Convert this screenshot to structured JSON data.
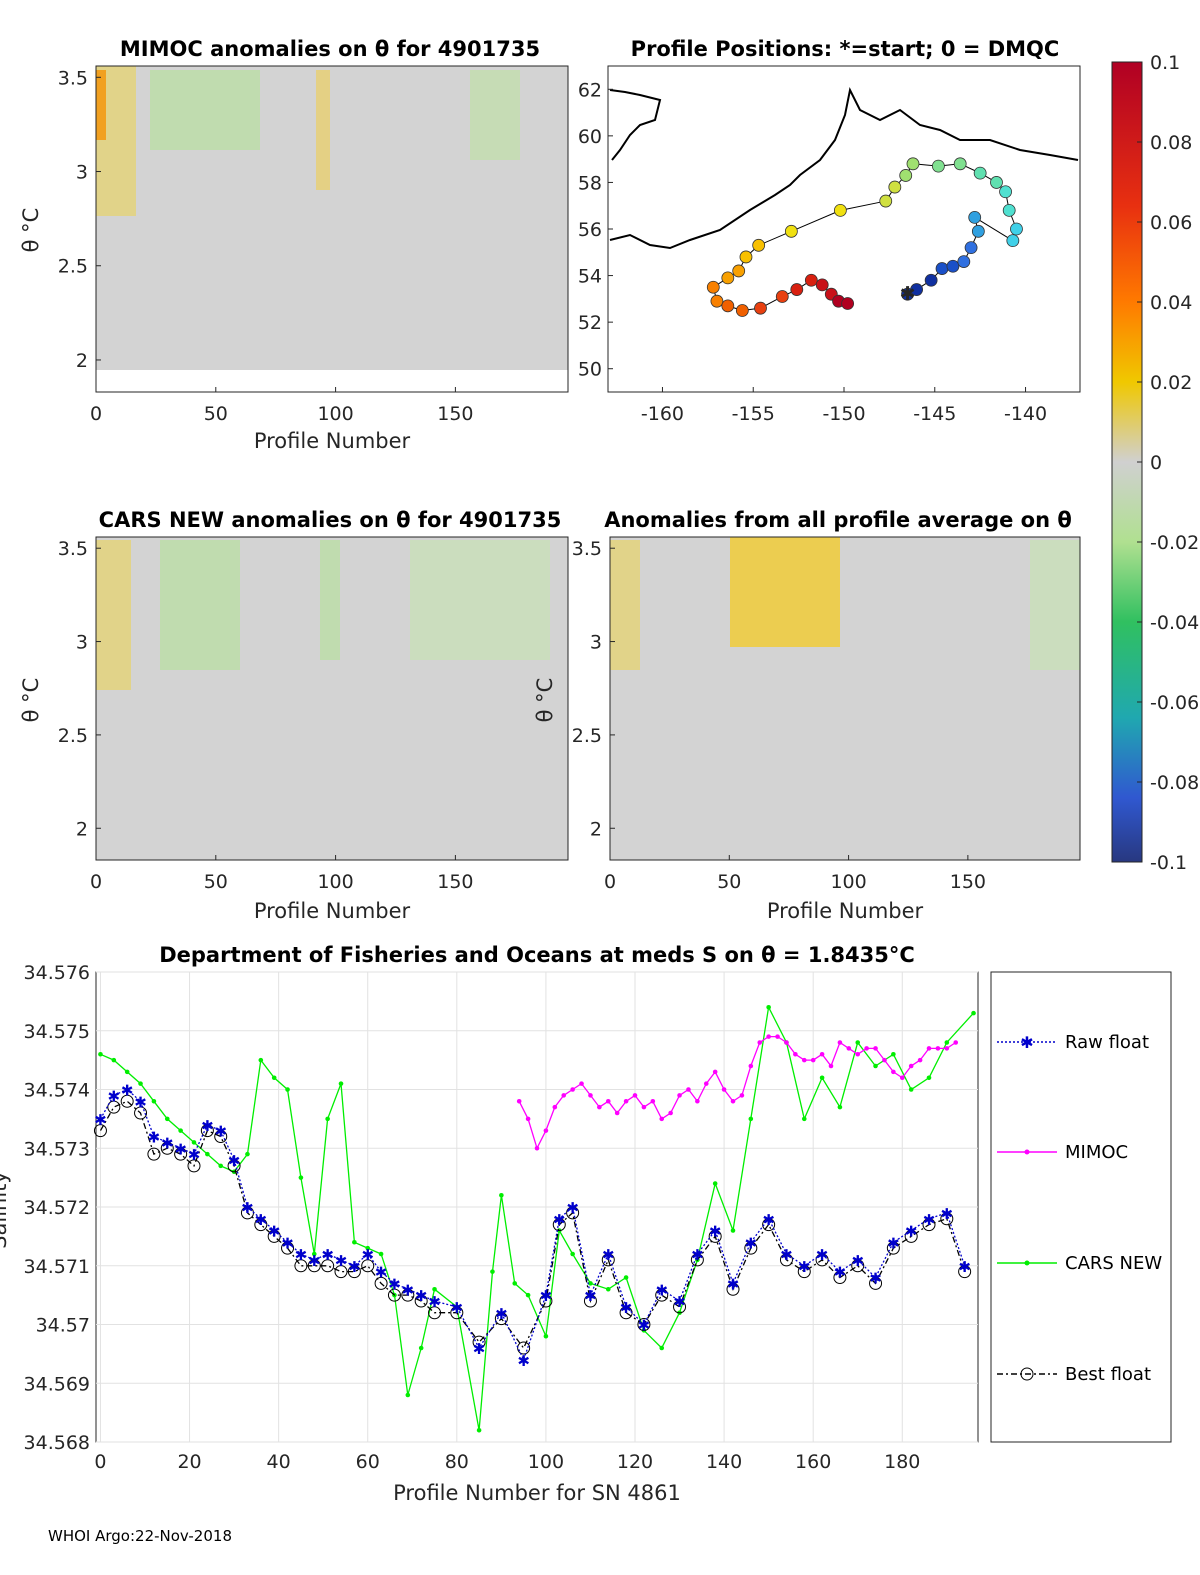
{
  "footer": "WHOI Argo:22-Nov-2018",
  "colors": {
    "raw": "#0000cc",
    "mimoc": "#ff00ff",
    "cars": "#00ee00",
    "best": "#000000"
  },
  "chart_data": [
    {
      "id": "mimoc",
      "type": "heatmap",
      "title": "MIMOC anomalies on θ  for 4901735",
      "xlabel": "Profile Number",
      "ylabel": "θ °C",
      "xticks": [
        "0",
        "50",
        "100",
        "150"
      ],
      "yticks": [
        "2",
        "2.5",
        "3",
        "3.5"
      ],
      "xlim": [
        0,
        197
      ],
      "ylim": [
        1.83,
        3.56
      ]
    },
    {
      "id": "positions",
      "type": "scatter",
      "title": "Profile Positions: *=start; 0 = DMQC",
      "xticks": [
        "-160",
        "-155",
        "-150",
        "-145",
        "-140"
      ],
      "yticks": [
        "50",
        "52",
        "54",
        "56",
        "58",
        "60",
        "62"
      ],
      "xlim": [
        -163,
        -137
      ],
      "ylim": [
        49,
        63
      ]
    },
    {
      "id": "colorbar",
      "type": "heatmap",
      "ticks": [
        "0.1",
        "0.08",
        "0.06",
        "0.04",
        "0.02",
        "0",
        "-0.02",
        "-0.04",
        "-0.06",
        "-0.08",
        "-0.1"
      ],
      "range": [
        -0.1,
        0.1
      ]
    },
    {
      "id": "cars",
      "type": "heatmap",
      "title": "CARS NEW anomalies on θ for 4901735",
      "xlabel": "Profile Number",
      "ylabel": "θ °C",
      "xticks": [
        "0",
        "50",
        "100",
        "150"
      ],
      "yticks": [
        "2",
        "2.5",
        "3",
        "3.5"
      ],
      "xlim": [
        0,
        197
      ],
      "ylim": [
        1.83,
        3.56
      ]
    },
    {
      "id": "allavg",
      "type": "heatmap",
      "title": "Anomalies from all profile average on θ",
      "xlabel": "Profile Number",
      "ylabel": "θ °C",
      "xticks": [
        "0",
        "50",
        "100",
        "150"
      ],
      "yticks": [
        "2",
        "2.5",
        "3",
        "3.5"
      ],
      "xlim": [
        0,
        197
      ],
      "ylim": [
        1.83,
        3.56
      ]
    },
    {
      "id": "salinity",
      "type": "line",
      "title": "Department of Fisheries and Oceans at meds S on θ = 1.8435°C",
      "xlabel": "Profile Number for SN 4861",
      "ylabel": "Salinity",
      "xticks": [
        "0",
        "20",
        "40",
        "60",
        "80",
        "100",
        "120",
        "140",
        "160",
        "180"
      ],
      "yticks": [
        "34.568",
        "34.569",
        "34.57",
        "34.571",
        "34.572",
        "34.573",
        "34.574",
        "34.575",
        "34.576"
      ],
      "xlim": [
        -1,
        197
      ],
      "ylim": [
        34.568,
        34.576
      ],
      "legend": [
        "Raw float",
        "MIMOC",
        "CARS NEW",
        "Best float"
      ],
      "series": [
        {
          "name": "Raw float",
          "x": [
            0,
            3,
            6,
            9,
            12,
            15,
            18,
            21,
            24,
            27,
            30,
            33,
            36,
            39,
            42,
            45,
            48,
            51,
            54,
            57,
            60,
            63,
            66,
            69,
            72,
            75,
            80,
            85,
            90,
            95,
            100,
            103,
            106,
            110,
            114,
            118,
            122,
            126,
            130,
            134,
            138,
            142,
            146,
            150,
            154,
            158,
            162,
            166,
            170,
            174,
            178,
            182,
            186,
            190,
            194
          ],
          "y": [
            34.5735,
            34.5739,
            34.574,
            34.5738,
            34.5732,
            34.5731,
            34.573,
            34.5729,
            34.5734,
            34.5733,
            34.5728,
            34.572,
            34.5718,
            34.5716,
            34.5714,
            34.5712,
            34.5711,
            34.5712,
            34.5711,
            34.571,
            34.5712,
            34.5709,
            34.5707,
            34.5706,
            34.5705,
            34.5704,
            34.5703,
            34.5696,
            34.5702,
            34.5694,
            34.5705,
            34.5718,
            34.572,
            34.5705,
            34.5712,
            34.5703,
            34.57,
            34.5706,
            34.5704,
            34.5712,
            34.5716,
            34.5707,
            34.5714,
            34.5718,
            34.5712,
            34.571,
            34.5712,
            34.5709,
            34.5711,
            34.5708,
            34.5714,
            34.5716,
            34.5718,
            34.5719,
            34.571
          ]
        },
        {
          "name": "MIMOC",
          "x": [
            94,
            96,
            98,
            100,
            102,
            104,
            106,
            108,
            110,
            112,
            114,
            116,
            118,
            120,
            122,
            124,
            126,
            128,
            130,
            132,
            134,
            136,
            138,
            140,
            142,
            144,
            146,
            148,
            150,
            152,
            154,
            156,
            158,
            160,
            162,
            164,
            166,
            168,
            170,
            172,
            174,
            176,
            178,
            180,
            182,
            184,
            186,
            188,
            190,
            192
          ],
          "y": [
            34.5738,
            34.5735,
            34.573,
            34.5733,
            34.5737,
            34.5739,
            34.574,
            34.5741,
            34.5739,
            34.5737,
            34.5738,
            34.5736,
            34.5738,
            34.5739,
            34.5737,
            34.5738,
            34.5735,
            34.5736,
            34.5739,
            34.574,
            34.5738,
            34.5741,
            34.5743,
            34.574,
            34.5738,
            34.5739,
            34.5744,
            34.5748,
            34.5749,
            34.5749,
            34.5748,
            34.5746,
            34.5745,
            34.5745,
            34.5746,
            34.5744,
            34.5748,
            34.5747,
            34.5746,
            34.5747,
            34.5747,
            34.5745,
            34.5743,
            34.5742,
            34.5744,
            34.5745,
            34.5747,
            34.5747,
            34.5747,
            34.5748
          ]
        },
        {
          "name": "CARS NEW",
          "x": [
            0,
            3,
            6,
            9,
            12,
            15,
            18,
            21,
            24,
            27,
            30,
            33,
            36,
            39,
            42,
            45,
            48,
            51,
            54,
            57,
            60,
            63,
            66,
            69,
            72,
            75,
            80,
            85,
            88,
            90,
            93,
            96,
            100,
            103,
            106,
            110,
            114,
            118,
            122,
            126,
            130,
            134,
            138,
            142,
            146,
            150,
            154,
            158,
            162,
            166,
            170,
            174,
            178,
            182,
            186,
            190,
            196
          ],
          "y": [
            34.5746,
            34.5745,
            34.5743,
            34.5741,
            34.5738,
            34.5735,
            34.5733,
            34.5731,
            34.5729,
            34.5727,
            34.5726,
            34.5729,
            34.5745,
            34.5742,
            34.574,
            34.5725,
            34.5712,
            34.5735,
            34.5741,
            34.5714,
            34.5713,
            34.5712,
            34.5705,
            34.5688,
            34.5696,
            34.5706,
            34.5703,
            34.5682,
            34.5709,
            34.5722,
            34.5707,
            34.5705,
            34.5698,
            34.5716,
            34.5712,
            34.5707,
            34.5706,
            34.5708,
            34.5699,
            34.5696,
            34.5702,
            34.5711,
            34.5724,
            34.5716,
            34.5735,
            34.5754,
            34.5748,
            34.5735,
            34.5742,
            34.5737,
            34.5748,
            34.5744,
            34.5746,
            34.574,
            34.5742,
            34.5748,
            34.5753
          ]
        },
        {
          "name": "Best float",
          "x": [
            0,
            3,
            6,
            9,
            12,
            15,
            18,
            21,
            24,
            27,
            30,
            33,
            36,
            39,
            42,
            45,
            48,
            51,
            54,
            57,
            60,
            63,
            66,
            69,
            72,
            75,
            80,
            85,
            90,
            95,
            100,
            103,
            106,
            110,
            114,
            118,
            122,
            126,
            130,
            134,
            138,
            142,
            146,
            150,
            154,
            158,
            162,
            166,
            170,
            174,
            178,
            182,
            186,
            190,
            194
          ],
          "y": [
            34.5733,
            34.5737,
            34.5738,
            34.5736,
            34.5729,
            34.573,
            34.5729,
            34.5727,
            34.5733,
            34.5732,
            34.5727,
            34.5719,
            34.5717,
            34.5715,
            34.5713,
            34.571,
            34.571,
            34.571,
            34.5709,
            34.5709,
            34.571,
            34.5707,
            34.5705,
            34.5705,
            34.5704,
            34.5702,
            34.5702,
            34.5697,
            34.5701,
            34.5696,
            34.5704,
            34.5717,
            34.5719,
            34.5704,
            34.5711,
            34.5702,
            34.57,
            34.5705,
            34.5703,
            34.5711,
            34.5715,
            34.5706,
            34.5713,
            34.5717,
            34.5711,
            34.5709,
            34.5711,
            34.5708,
            34.571,
            34.5707,
            34.5713,
            34.5715,
            34.5717,
            34.5718,
            34.5709
          ]
        }
      ]
    }
  ]
}
